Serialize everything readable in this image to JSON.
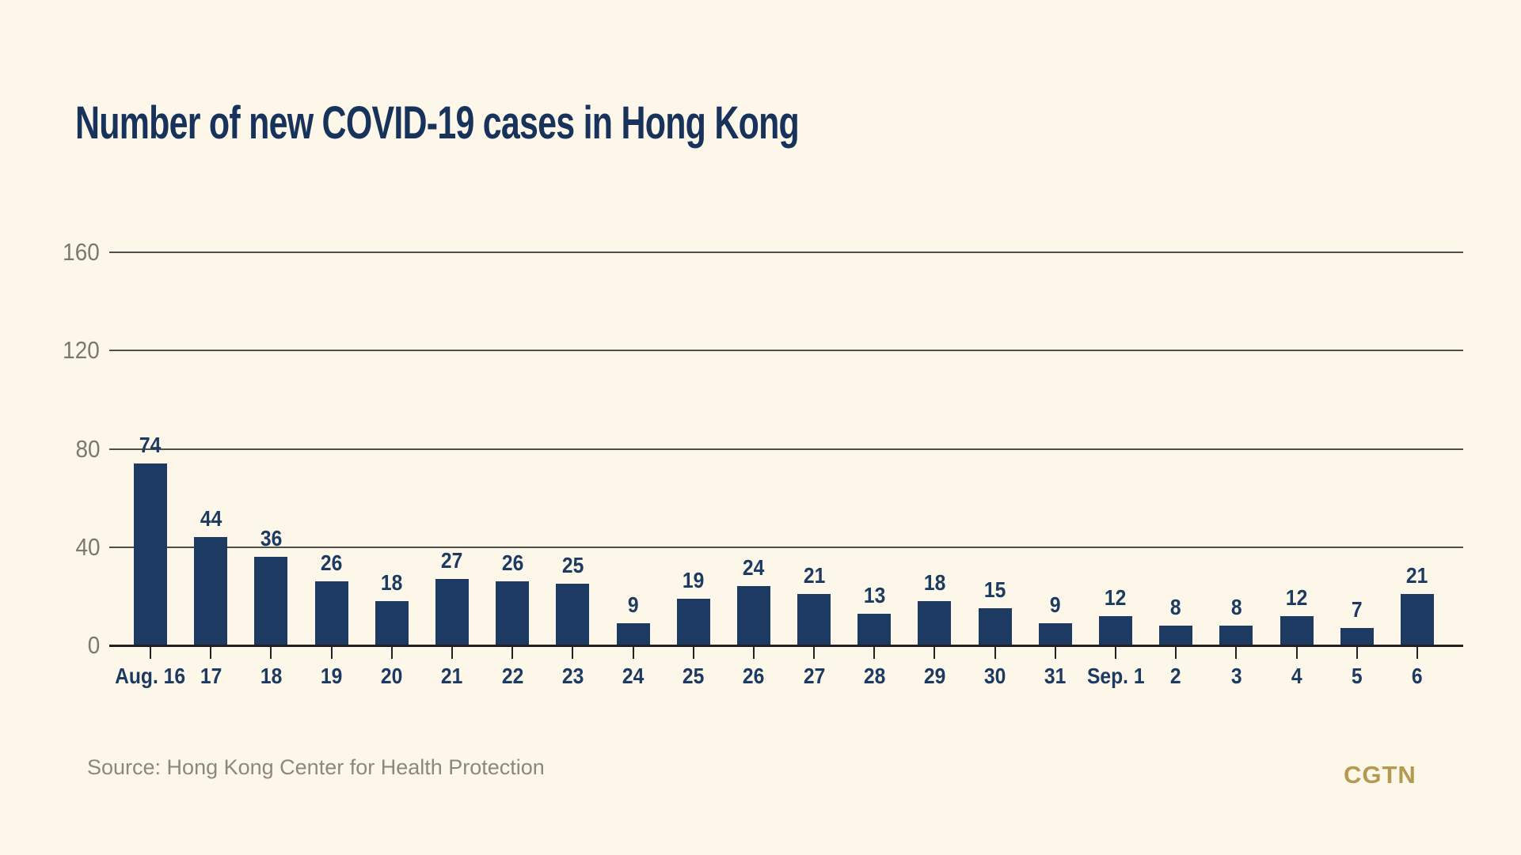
{
  "title": "Number of new COVID-19 cases in Hong Kong",
  "source": "Source: Hong Kong Center for Health Protection",
  "logo": "CGTN",
  "colors": {
    "background": "#FCF7E8",
    "bar": "#1D3A63",
    "navy": "#1D3A63",
    "title": "#17325B",
    "grid": "#504E49",
    "axis": "#22211F",
    "y_label": "#7B7871",
    "source_text": "#8B8880",
    "logo_gold": "#B49A50"
  },
  "chart_data": {
    "type": "bar",
    "title": "Number of new COVID-19 cases in Hong Kong",
    "categories": [
      "Aug. 16",
      "17",
      "18",
      "19",
      "20",
      "21",
      "22",
      "23",
      "24",
      "25",
      "26",
      "27",
      "28",
      "29",
      "30",
      "31",
      "Sep. 1",
      "2",
      "3",
      "4",
      "5",
      "6"
    ],
    "values": [
      74,
      44,
      36,
      26,
      18,
      27,
      26,
      25,
      9,
      19,
      24,
      21,
      13,
      18,
      15,
      9,
      12,
      8,
      8,
      12,
      7,
      21
    ],
    "xlabel": "",
    "ylabel": "",
    "yticks": [
      0,
      40,
      80,
      120,
      160
    ],
    "ylim": [
      0,
      160
    ],
    "grid": true,
    "grid_position": "behind-bars",
    "value_labels": true,
    "legend": "none"
  }
}
